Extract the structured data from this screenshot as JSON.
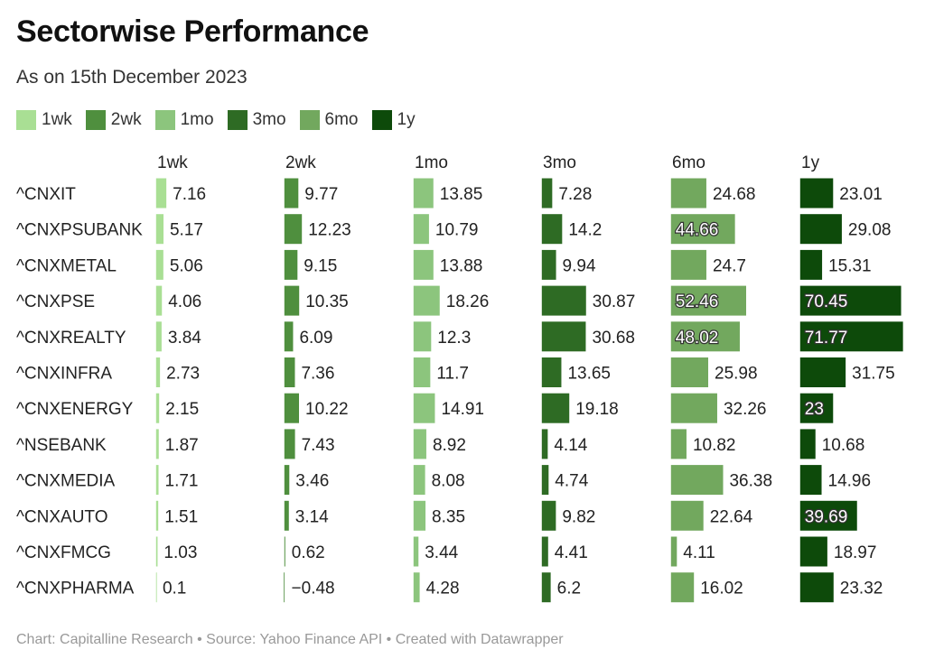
{
  "title": "Sectorwise Performance",
  "subtitle": "As on 15th December 2023",
  "footer": "Chart: Capitalline Research • Source: Yahoo Finance API • Created with Datawrapper",
  "legend": [
    {
      "label": "1wk",
      "color": "#a9df94"
    },
    {
      "label": "2wk",
      "color": "#4f8f3e"
    },
    {
      "label": "1mo",
      "color": "#8cc57d"
    },
    {
      "label": "3mo",
      "color": "#2e6b24"
    },
    {
      "label": "6mo",
      "color": "#72a85e"
    },
    {
      "label": "1y",
      "color": "#0d4a0a"
    }
  ],
  "chart_data": {
    "type": "bar",
    "layout": "split-bars",
    "categories": [
      "^CNXIT",
      "^CNXPSUBANK",
      "^CNXMETAL",
      "^CNXPSE",
      "^CNXREALTY",
      "^CNXINFRA",
      "^CNXENERGY",
      "^NSEBANK",
      "^CNXMEDIA",
      "^CNXAUTO",
      "^CNXFMCG",
      "^CNXPHARMA"
    ],
    "series": [
      {
        "name": "1wk",
        "color": "#a9df94",
        "values": [
          7.16,
          5.17,
          5.06,
          4.06,
          3.84,
          2.73,
          2.15,
          1.87,
          1.71,
          1.51,
          1.03,
          0.1
        ]
      },
      {
        "name": "2wk",
        "color": "#4f8f3e",
        "values": [
          9.77,
          12.23,
          9.15,
          10.35,
          6.09,
          7.36,
          10.22,
          7.43,
          3.46,
          3.14,
          0.62,
          -0.48
        ]
      },
      {
        "name": "1mo",
        "color": "#8cc57d",
        "values": [
          13.85,
          10.79,
          13.88,
          18.26,
          12.3,
          11.7,
          14.91,
          8.92,
          8.08,
          8.35,
          3.44,
          4.28
        ]
      },
      {
        "name": "3mo",
        "color": "#2e6b24",
        "values": [
          7.28,
          14.2,
          9.94,
          30.87,
          30.68,
          13.65,
          19.18,
          4.14,
          4.74,
          9.82,
          4.41,
          6.2
        ]
      },
      {
        "name": "6mo",
        "color": "#72a85e",
        "values": [
          24.68,
          44.66,
          24.7,
          52.46,
          48.02,
          25.98,
          32.26,
          10.82,
          36.38,
          22.64,
          4.11,
          16.02
        ]
      },
      {
        "name": "1y",
        "color": "#0d4a0a",
        "values": [
          23.01,
          29.08,
          15.31,
          70.45,
          71.77,
          31.75,
          23,
          10.68,
          14.96,
          39.69,
          18.97,
          23.32
        ]
      }
    ],
    "value_labels": [
      [
        "7.16",
        "5.17",
        "5.06",
        "4.06",
        "3.84",
        "2.73",
        "2.15",
        "1.87",
        "1.71",
        "1.51",
        "1.03",
        "0.1"
      ],
      [
        "9.77",
        "12.23",
        "9.15",
        "10.35",
        "6.09",
        "7.36",
        "10.22",
        "7.43",
        "3.46",
        "3.14",
        "0.62",
        "−0.48"
      ],
      [
        "13.85",
        "10.79",
        "13.88",
        "18.26",
        "12.3",
        "11.7",
        "14.91",
        "8.92",
        "8.08",
        "8.35",
        "3.44",
        "4.28"
      ],
      [
        "7.28",
        "14.2",
        "9.94",
        "30.87",
        "30.68",
        "13.65",
        "19.18",
        "4.14",
        "4.74",
        "9.82",
        "4.41",
        "6.2"
      ],
      [
        "24.68",
        "44.66",
        "24.7",
        "52.46",
        "48.02",
        "25.98",
        "32.26",
        "10.82",
        "36.38",
        "22.64",
        "4.11",
        "16.02"
      ],
      [
        "23.01",
        "29.08",
        "15.31",
        "70.45",
        "71.77",
        "31.75",
        "23",
        "10.68",
        "14.96",
        "39.69",
        "18.97",
        "23.32"
      ]
    ],
    "xlim": [
      -0.5,
      72
    ]
  }
}
